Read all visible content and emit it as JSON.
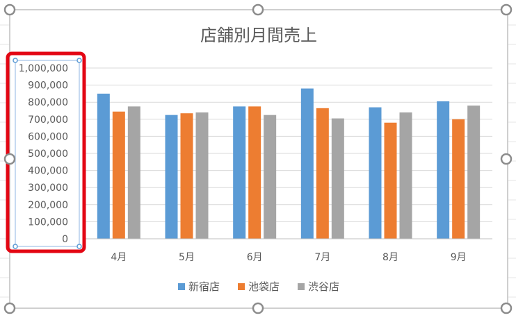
{
  "chart_data": {
    "type": "bar",
    "title": "店舗別月間売上",
    "categories": [
      "4月",
      "5月",
      "6月",
      "7月",
      "8月",
      "9月"
    ],
    "series": [
      {
        "name": "新宿店",
        "color": "#5b9bd5",
        "values": [
          850000,
          725000,
          775000,
          880000,
          770000,
          805000
        ]
      },
      {
        "name": "池袋店",
        "color": "#ed7d31",
        "values": [
          745000,
          735000,
          775000,
          765000,
          680000,
          700000
        ]
      },
      {
        "name": "渋谷店",
        "color": "#a5a5a5",
        "values": [
          775000,
          740000,
          725000,
          705000,
          740000,
          780000
        ]
      }
    ],
    "y_ticks": [
      "0",
      "100,000",
      "200,000",
      "300,000",
      "400,000",
      "500,000",
      "600,000",
      "700,000",
      "800,000",
      "900,000",
      "1,000,000"
    ],
    "ylim": [
      0,
      1000000
    ],
    "grid": true,
    "legend_position": "bottom"
  },
  "colors": {
    "selection_highlight": "#e30613",
    "gridline": "#d9d9d9",
    "text": "#595959"
  }
}
